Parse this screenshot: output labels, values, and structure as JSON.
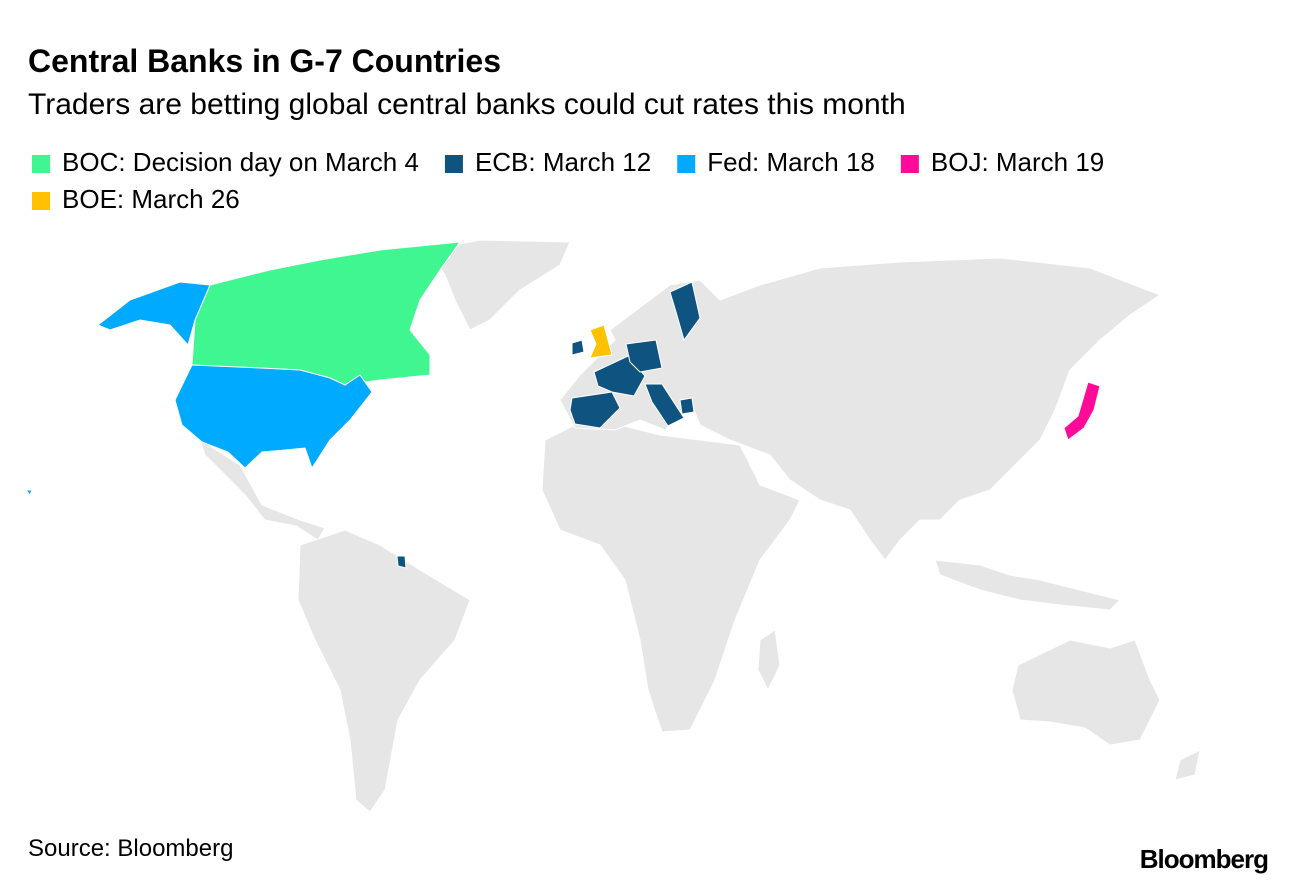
{
  "header": {
    "title": "Central Banks in G-7 Countries",
    "subtitle": "Traders are betting global central banks could cut rates this month"
  },
  "legend": [
    {
      "label": "BOC: Decision day on March 4",
      "color": "#40f690"
    },
    {
      "label": "ECB: March 12",
      "color": "#0f5480"
    },
    {
      "label": "Fed: March 18",
      "color": "#00aaff"
    },
    {
      "label": "BOJ: March 19",
      "color": "#ff0a99"
    },
    {
      "label": "BOE: March 26",
      "color": "#ffc100"
    }
  ],
  "footer": {
    "source": "Source: Bloomberg",
    "brand": "Bloomberg"
  }
}
